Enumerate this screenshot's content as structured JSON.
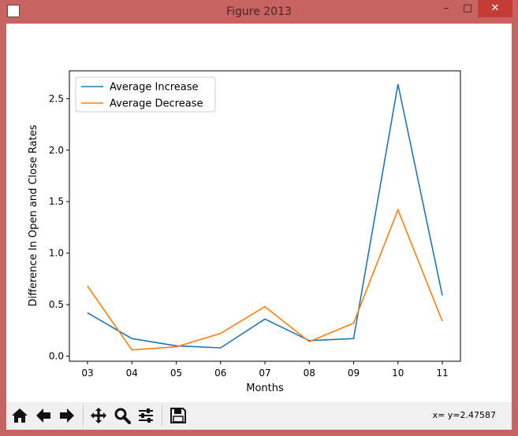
{
  "window": {
    "title": "Figure 2013",
    "minimize_glyph": "–",
    "maximize_glyph": "□",
    "close_glyph": "✕"
  },
  "toolbar": {
    "coordinates": "x= y=2.47587",
    "buttons": [
      {
        "name": "home-icon"
      },
      {
        "name": "back-arrow-icon"
      },
      {
        "name": "forward-arrow-icon"
      },
      {
        "name": "pan-icon"
      },
      {
        "name": "zoom-icon"
      },
      {
        "name": "configure-subplots-icon"
      },
      {
        "name": "save-icon"
      }
    ]
  },
  "chart_data": {
    "type": "line",
    "title": "",
    "xlabel": "Months",
    "ylabel": "Difference In Open and Close Rates",
    "categories": [
      "03",
      "04",
      "05",
      "06",
      "07",
      "08",
      "09",
      "10",
      "11"
    ],
    "yticks": [
      "0.0",
      "0.5",
      "1.0",
      "1.5",
      "2.0",
      "2.5"
    ],
    "ylim": [
      -0.05,
      2.77
    ],
    "legend": "top-left",
    "grid": false,
    "series": [
      {
        "name": "Average Increase",
        "color": "#1f77b4",
        "values": [
          0.42,
          0.17,
          0.1,
          0.08,
          0.36,
          0.15,
          0.17,
          2.64,
          0.59
        ]
      },
      {
        "name": "Average Decrease",
        "color": "#ff7f0e",
        "values": [
          0.68,
          0.06,
          0.09,
          0.22,
          0.48,
          0.14,
          0.32,
          1.42,
          0.34
        ]
      }
    ]
  }
}
